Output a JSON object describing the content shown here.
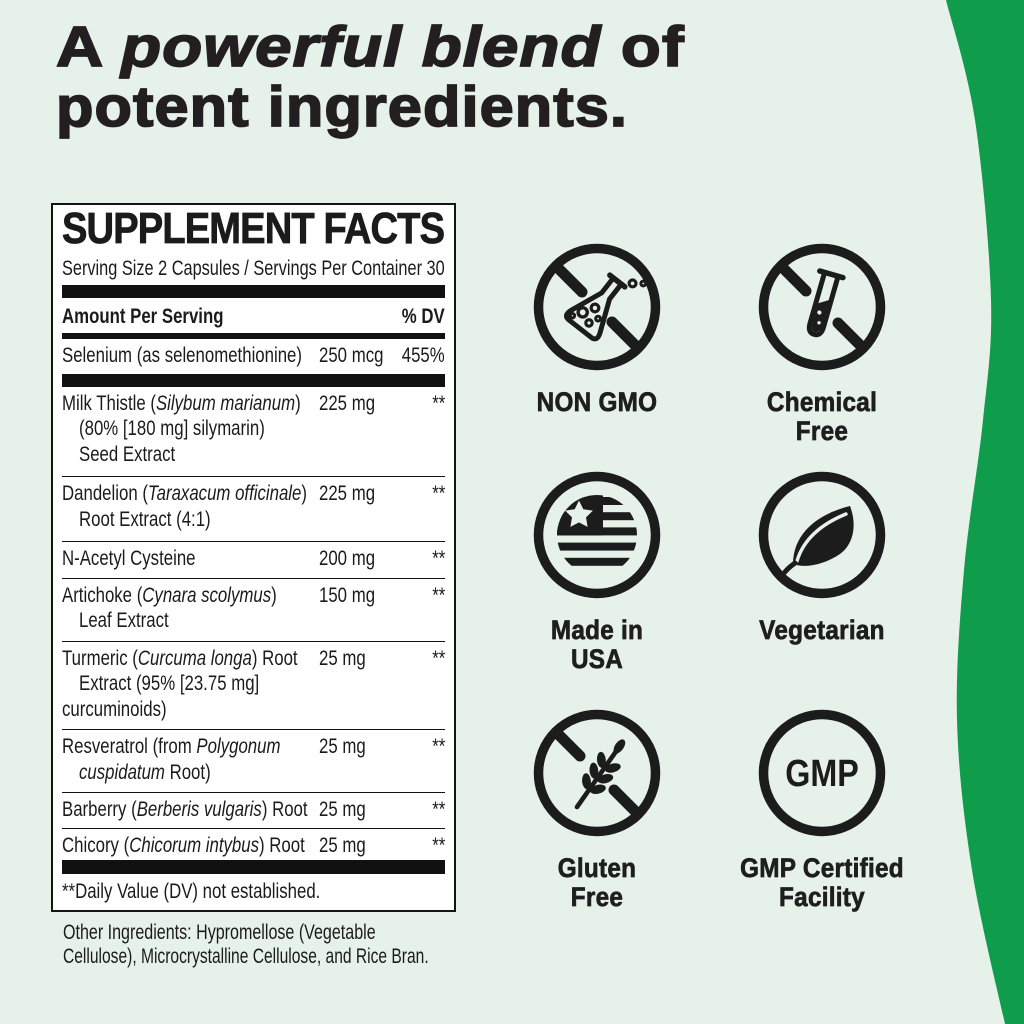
{
  "page": {
    "background_color": "#e6f1ea",
    "accent_green": "#0f9d4b",
    "text_color": "#221f20"
  },
  "headline": {
    "line1_prefix": "A ",
    "line1_emphasis": "powerful blend",
    "line1_suffix": " of",
    "line2": "potent ingredients."
  },
  "panel": {
    "title": "SUPPLEMENT FACTS",
    "serving_line": "Serving Size 2 Capsules / Servings Per Container 30",
    "header": {
      "left": "Amount Per Serving",
      "right": "% DV"
    },
    "rows": [
      {
        "lines": [
          [
            {
              "t": "Selenium (as selenomethionine)"
            }
          ]
        ],
        "amount": "250 mcg",
        "dv": "455%"
      },
      {
        "lines": [
          [
            {
              "t": "Milk Thistle ("
            },
            {
              "t": "Silybum marianum",
              "i": true
            },
            {
              "t": ")"
            }
          ],
          [
            {
              "t": "(80% [180 mg] silymarin)"
            }
          ],
          [
            {
              "t": "Seed Extract"
            }
          ]
        ],
        "amount": "225 mg",
        "dv": "**"
      },
      {
        "lines": [
          [
            {
              "t": "Dandelion ("
            },
            {
              "t": "Taraxacum officinale",
              "i": true
            },
            {
              "t": ")"
            }
          ],
          [
            {
              "t": "Root Extract (4:1)"
            }
          ]
        ],
        "amount": "225 mg",
        "dv": "**"
      },
      {
        "lines": [
          [
            {
              "t": "N-Acetyl Cysteine"
            }
          ]
        ],
        "amount": "200 mg",
        "dv": "**"
      },
      {
        "lines": [
          [
            {
              "t": "Artichoke ("
            },
            {
              "t": "Cynara scolymus",
              "i": true
            },
            {
              "t": ")"
            }
          ],
          [
            {
              "t": "Leaf Extract"
            }
          ]
        ],
        "amount": "150 mg",
        "dv": "**"
      },
      {
        "lines": [
          [
            {
              "t": "Turmeric ("
            },
            {
              "t": "Curcuma longa",
              "i": true
            },
            {
              "t": ") Root"
            }
          ],
          [
            {
              "t": "Extract (95% [23.75 mg]"
            }
          ],
          [
            {
              "t": "curcuminoids)",
              "noindent": true
            }
          ]
        ],
        "amount": "25 mg",
        "dv": "**"
      },
      {
        "lines": [
          [
            {
              "t": "Resveratrol (from "
            },
            {
              "t": "Polygonum",
              "i": true
            }
          ],
          [
            {
              "t": "cuspidatum",
              "i": true
            },
            {
              "t": " Root)"
            }
          ]
        ],
        "amount": "25 mg",
        "dv": "**"
      },
      {
        "lines": [
          [
            {
              "t": "Barberry ("
            },
            {
              "t": "Berberis vulgaris",
              "i": true
            },
            {
              "t": ") Root"
            }
          ]
        ],
        "amount": "25 mg",
        "dv": "**"
      },
      {
        "lines": [
          [
            {
              "t": "Chicory ("
            },
            {
              "t": "Chicorum intybus",
              "i": true
            },
            {
              "t": ") Root"
            }
          ]
        ],
        "amount": "25 mg",
        "dv": "**"
      }
    ],
    "footnote": "**Daily Value (DV) not established."
  },
  "other_ingredients": {
    "line1": "Other Ingredients: Hypromellose (Vegetable",
    "line2": "Cellulose), Microcrystalline Cellulose, and Rice Bran."
  },
  "badges": [
    {
      "icon": "no-gmo-flask-icon",
      "label_line1": "NON GMO",
      "label_line2": ""
    },
    {
      "icon": "no-chemical-tube-icon",
      "label_line1": "Chemical",
      "label_line2": "Free"
    },
    {
      "icon": "usa-flag-icon",
      "label_line1": "Made in",
      "label_line2": "USA"
    },
    {
      "icon": "leaf-icon",
      "label_line1": "Vegetarian",
      "label_line2": ""
    },
    {
      "icon": "no-gluten-wheat-icon",
      "label_line1": "Gluten",
      "label_line2": "Free"
    },
    {
      "icon": "gmp-circle-icon",
      "label_line1": "GMP Certified",
      "label_line2": "Facility",
      "icon_text": "GMP"
    }
  ]
}
